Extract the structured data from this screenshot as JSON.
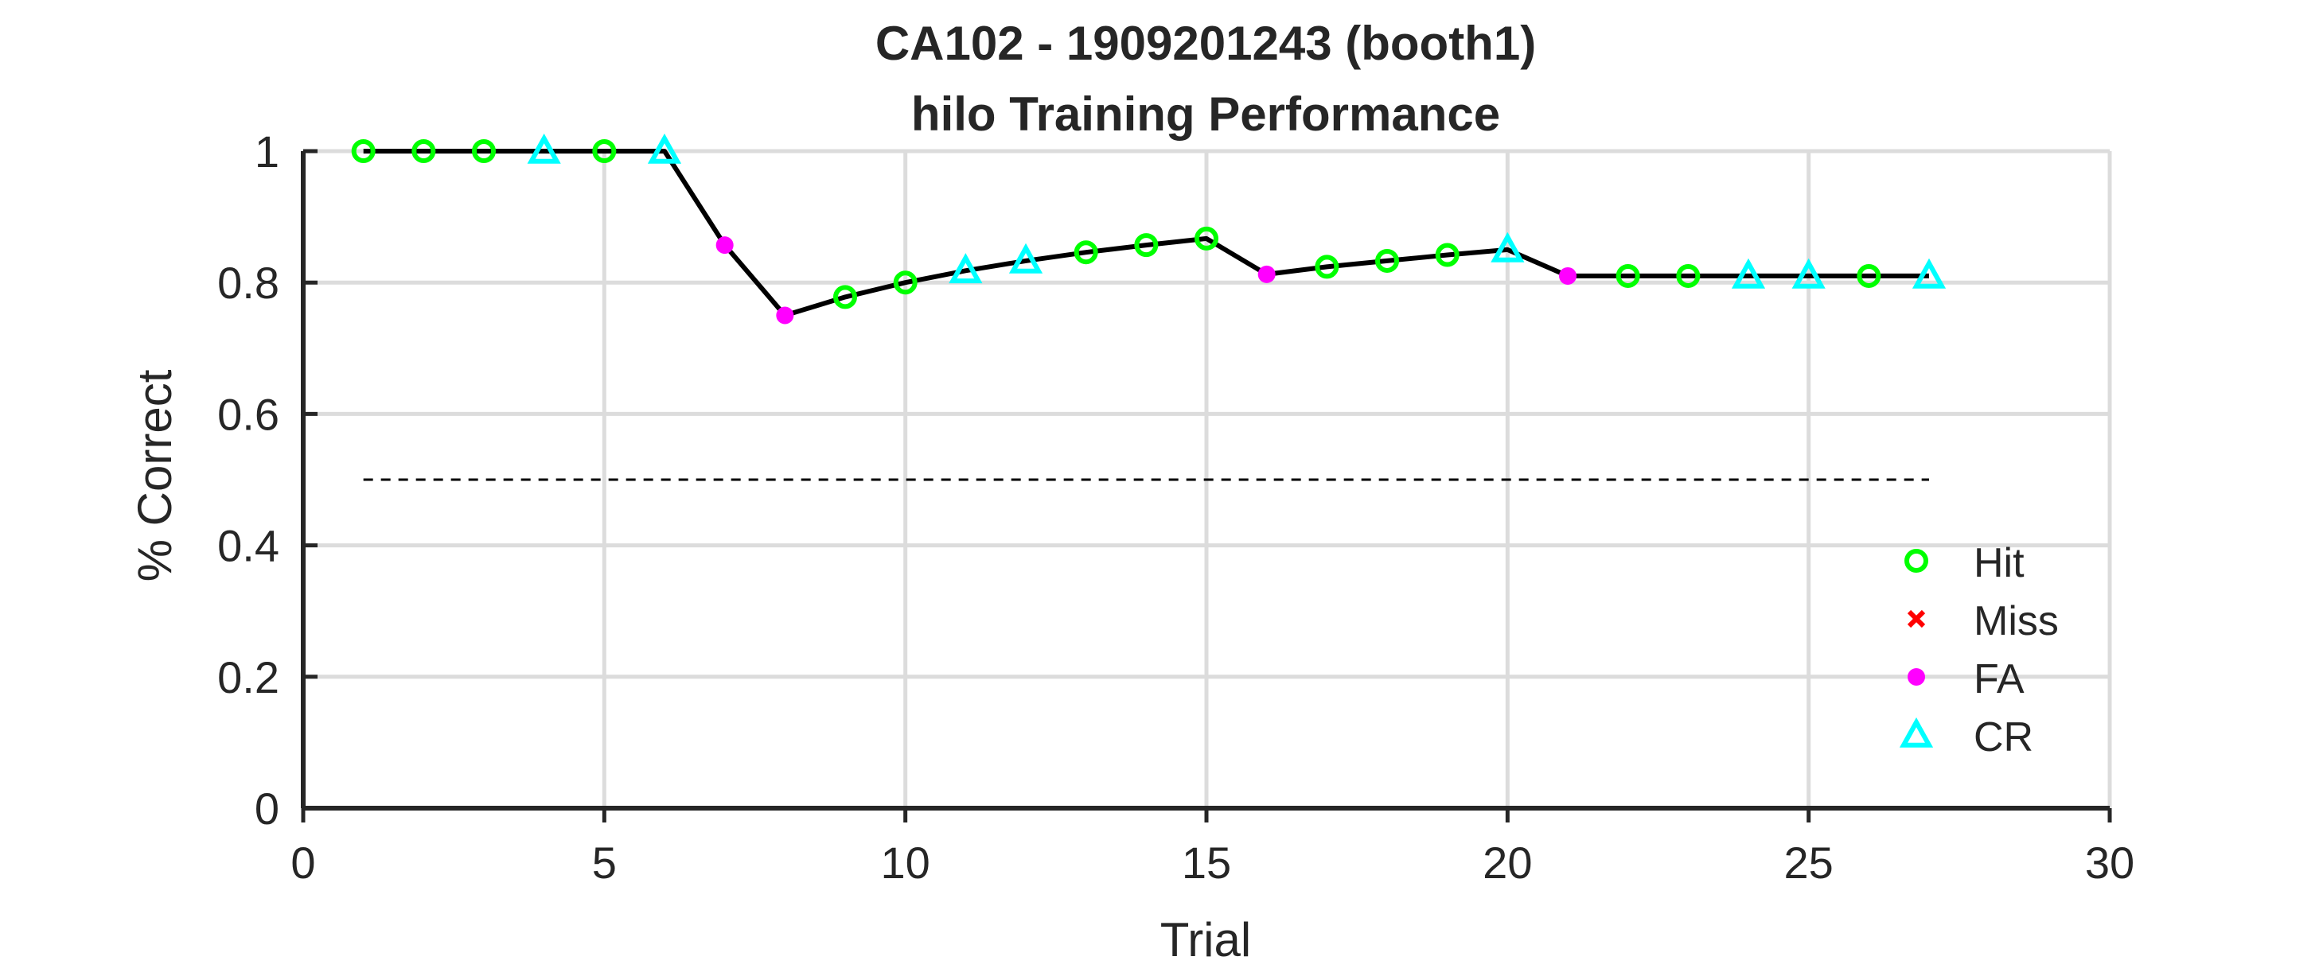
{
  "chart_data": {
    "type": "line",
    "title": "CA102 - 1909201243 (booth1)",
    "subtitle": "hilo Training Performance",
    "xlabel": "Trial",
    "ylabel": "% Correct",
    "xlim": [
      0,
      30
    ],
    "ylim": [
      0,
      1
    ],
    "xticks": [
      0,
      5,
      10,
      15,
      20,
      25,
      30
    ],
    "yticks": [
      0,
      0.2,
      0.4,
      0.6,
      0.8,
      1
    ],
    "grid": true,
    "legend_position": "bottom-right",
    "reference_line": {
      "y": 0.5,
      "x_range": [
        1,
        27
      ],
      "style": "dashed"
    },
    "series": [
      {
        "x": [
          1,
          2,
          3,
          4,
          5,
          6,
          7,
          8,
          9,
          10,
          11,
          12,
          13,
          14,
          15,
          16,
          17,
          18,
          19,
          20,
          21,
          22,
          23,
          24,
          25,
          26,
          27
        ],
        "values": [
          1,
          1,
          1,
          1,
          1,
          1,
          0.857,
          0.75,
          0.778,
          0.8,
          0.818,
          0.833,
          0.846,
          0.857,
          0.867,
          0.8125,
          0.824,
          0.833,
          0.842,
          0.85,
          0.81,
          0.81,
          0.81,
          0.81,
          0.81,
          0.81,
          0.81
        ],
        "color": "#000000"
      }
    ],
    "outcomes": [
      "Hit",
      "Hit",
      "Hit",
      "CR",
      "Hit",
      "CR",
      "FA",
      "FA",
      "Hit",
      "Hit",
      "CR",
      "CR",
      "Hit",
      "Hit",
      "Hit",
      "FA",
      "Hit",
      "Hit",
      "Hit",
      "CR",
      "FA",
      "Hit",
      "Hit",
      "CR",
      "CR",
      "Hit",
      "CR"
    ],
    "legend": [
      {
        "key": "Hit",
        "label": "Hit",
        "marker": "circle",
        "color": "#00ff00"
      },
      {
        "key": "Miss",
        "label": "Miss",
        "marker": "x",
        "color": "#ff0000"
      },
      {
        "key": "FA",
        "label": "FA",
        "marker": "dot",
        "color": "#ff00ff"
      },
      {
        "key": "CR",
        "label": "CR",
        "marker": "triangle",
        "color": "#00ffff"
      }
    ]
  }
}
